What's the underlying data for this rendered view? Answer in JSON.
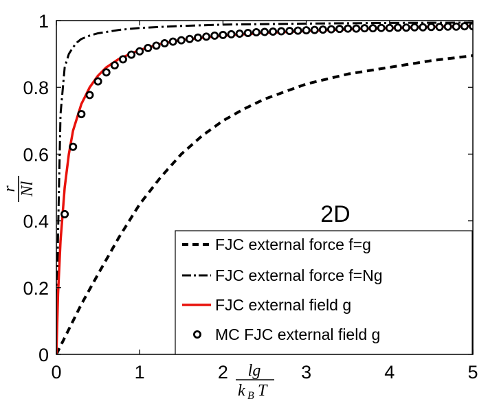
{
  "chart_data": {
    "type": "line",
    "title": "",
    "panel_label": "2D",
    "xlabel": {
      "num": "lg",
      "den": "k",
      "den_sub": "B",
      "den_tail": "T"
    },
    "ylabel": {
      "num": "r",
      "den": "Nl"
    },
    "xlim": [
      0,
      5
    ],
    "ylim": [
      0,
      1
    ],
    "xticks": [
      0,
      1,
      2,
      3,
      4,
      5
    ],
    "xtick_labels": [
      "0",
      "1",
      "2",
      "3",
      "4",
      "5"
    ],
    "yticks": [
      0,
      0.2,
      0.4,
      0.6,
      0.8,
      1
    ],
    "ytick_labels": [
      "0",
      "0.2",
      "0.4",
      "0.6",
      "0.8",
      "1"
    ],
    "grid": false,
    "legend_placement": "bottom-right",
    "series": [
      {
        "name": "FJC external force f=g",
        "style": "dashed",
        "color": "#000000",
        "x": [
          0,
          0.1,
          0.2,
          0.3,
          0.5,
          0.75,
          1.0,
          1.25,
          1.5,
          1.75,
          2.0,
          2.25,
          2.5,
          3.0,
          3.5,
          4.0,
          4.5,
          5.0
        ],
        "y": [
          0,
          0.05,
          0.1,
          0.15,
          0.24,
          0.35,
          0.45,
          0.53,
          0.6,
          0.655,
          0.7,
          0.735,
          0.765,
          0.81,
          0.84,
          0.86,
          0.88,
          0.895
        ]
      },
      {
        "name": "FJC external force f=Ng",
        "style": "dashdot",
        "color": "#000000",
        "x": [
          0,
          0.02,
          0.05,
          0.1,
          0.15,
          0.2,
          0.25,
          0.3,
          0.4,
          0.5,
          0.75,
          1.0,
          1.5,
          2.0,
          3.0,
          4.0,
          5.0
        ],
        "y": [
          0,
          0.36,
          0.72,
          0.86,
          0.9,
          0.92,
          0.935,
          0.945,
          0.955,
          0.962,
          0.972,
          0.978,
          0.984,
          0.988,
          0.991,
          0.993,
          0.994
        ]
      },
      {
        "name": "FJC external field g",
        "style": "solid",
        "color": "#e8120c",
        "x": [
          0,
          0.02,
          0.05,
          0.1,
          0.15,
          0.2,
          0.3,
          0.4,
          0.5,
          0.6,
          0.75,
          1.0,
          1.25,
          1.5,
          2.0,
          2.5,
          3.0,
          3.5,
          4.0,
          4.5,
          5.0
        ],
        "y": [
          0,
          0.18,
          0.34,
          0.5,
          0.6,
          0.67,
          0.75,
          0.8,
          0.835,
          0.86,
          0.885,
          0.912,
          0.93,
          0.942,
          0.955,
          0.963,
          0.969,
          0.974,
          0.978,
          0.981,
          0.984
        ]
      },
      {
        "name": "MC FJC external field g",
        "style": "markers",
        "color": "#000000",
        "x": [
          0.1,
          0.2,
          0.3,
          0.4,
          0.5,
          0.6,
          0.7,
          0.8,
          0.9,
          1.0,
          1.1,
          1.2,
          1.3,
          1.4,
          1.5,
          1.6,
          1.7,
          1.8,
          1.9,
          2.0,
          2.1,
          2.2,
          2.3,
          2.4,
          2.5,
          2.6,
          2.7,
          2.8,
          2.9,
          3.0,
          3.1,
          3.2,
          3.3,
          3.4,
          3.5,
          3.6,
          3.7,
          3.8,
          3.9,
          4.0,
          4.1,
          4.2,
          4.3,
          4.4,
          4.5,
          4.6,
          4.7,
          4.8,
          4.9,
          5.0
        ],
        "y": [
          0.42,
          0.622,
          0.72,
          0.777,
          0.818,
          0.845,
          0.866,
          0.884,
          0.898,
          0.908,
          0.918,
          0.925,
          0.932,
          0.937,
          0.941,
          0.945,
          0.949,
          0.952,
          0.955,
          0.957,
          0.959,
          0.961,
          0.963,
          0.965,
          0.966,
          0.967,
          0.968,
          0.969,
          0.97,
          0.971,
          0.972,
          0.973,
          0.974,
          0.975,
          0.976,
          0.976,
          0.977,
          0.977,
          0.978,
          0.978,
          0.979,
          0.979,
          0.98,
          0.98,
          0.981,
          0.981,
          0.982,
          0.982,
          0.983,
          0.983
        ]
      }
    ]
  }
}
